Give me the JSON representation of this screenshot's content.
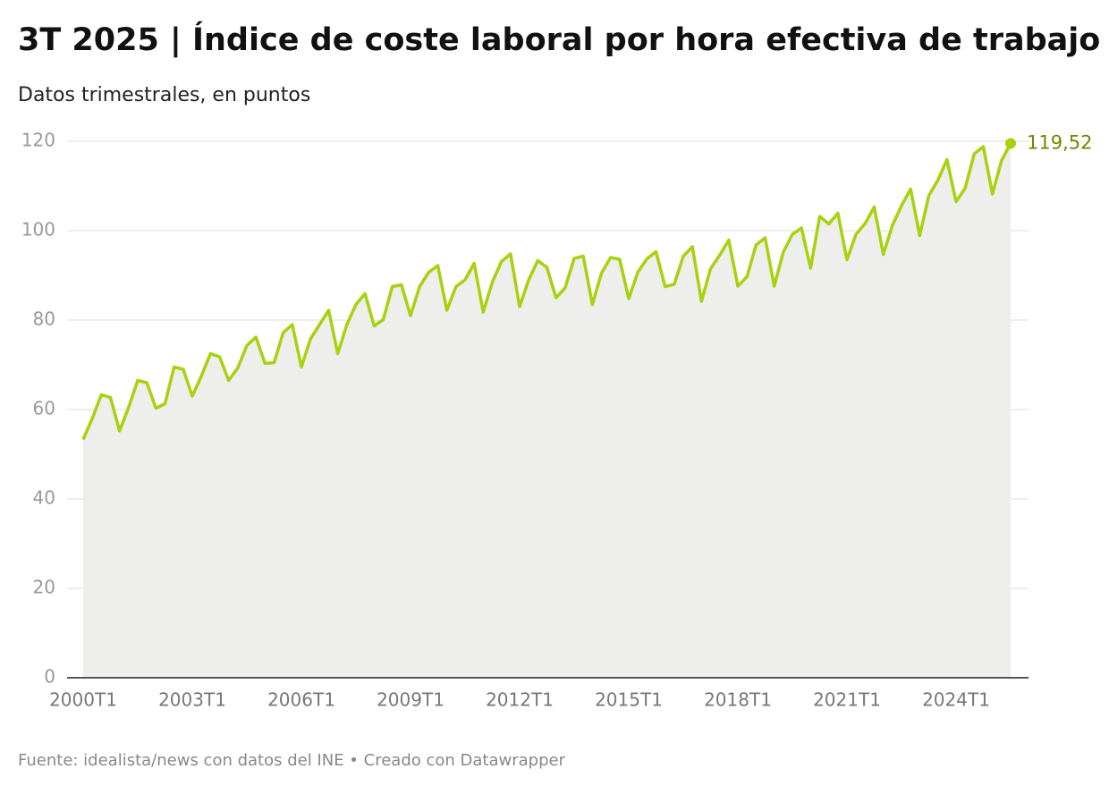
{
  "chart_data": {
    "type": "line",
    "title": "3T 2025 | Índice de coste laboral por hora efectiva de trabajo",
    "subtitle": "Datos trimestrales, en puntos",
    "source": "Fuente: idealista/news con datos del INE • Creado con Datawrapper",
    "categories": [
      "2000T1",
      null,
      null,
      null,
      null,
      null,
      null,
      null,
      null,
      null,
      null,
      null,
      "2003T1",
      null,
      null,
      null,
      null,
      null,
      null,
      null,
      null,
      null,
      null,
      null,
      "2006T1",
      null,
      null,
      null,
      null,
      null,
      null,
      null,
      null,
      null,
      null,
      null,
      "2009T1",
      null,
      null,
      null,
      null,
      null,
      null,
      null,
      null,
      null,
      null,
      null,
      "2012T1",
      null,
      null,
      null,
      null,
      null,
      null,
      null,
      null,
      null,
      null,
      null,
      "2015T1",
      null,
      null,
      null,
      null,
      null,
      null,
      null,
      null,
      null,
      null,
      null,
      "2018T1",
      null,
      null,
      null,
      null,
      null,
      null,
      null,
      null,
      null,
      null,
      null,
      "2021T1",
      null,
      null,
      null,
      null,
      null,
      null,
      null,
      null,
      null,
      null,
      null,
      "2024T1",
      null,
      null,
      null,
      null,
      null,
      null
    ],
    "values": [
      53.3,
      58,
      63.3,
      62.7,
      55.2,
      60.5,
      66.5,
      66,
      60.3,
      61.3,
      69.5,
      69,
      63,
      67.5,
      72.5,
      71.8,
      66.5,
      69.3,
      74.3,
      76.2,
      70.3,
      70.5,
      77.2,
      79,
      69.5,
      75.8,
      79,
      82.2,
      72.5,
      79,
      83.5,
      85.9,
      78.7,
      80.1,
      87.5,
      87.9,
      81,
      87.5,
      90.7,
      92.2,
      82.2,
      87.5,
      89,
      92.7,
      81.8,
      88.5,
      93.1,
      94.8,
      83,
      89,
      93.3,
      91.8,
      85,
      87.2,
      93.8,
      94.3,
      83.5,
      90.5,
      94,
      93.6,
      84.8,
      90.7,
      93.7,
      95.3,
      87.5,
      88,
      94.3,
      96.4,
      84.2,
      91.5,
      94.5,
      97.9,
      87.6,
      89.7,
      96.8,
      98.4,
      87.6,
      95.2,
      99.2,
      100.6,
      91.6,
      103.2,
      101.5,
      103.9,
      93.5,
      99.2,
      101.6,
      105.3,
      94.7,
      101.2,
      105.6,
      109.3,
      98.9,
      107.8,
      111.3,
      115.9,
      106.5,
      109.5,
      117.2,
      118.8,
      108.2,
      115.7,
      119.52
    ],
    "value_labels": [
      null,
      null,
      null,
      null,
      null,
      null,
      null,
      null,
      null,
      null,
      null,
      null,
      null,
      null,
      null,
      null,
      null,
      null,
      null,
      null,
      null,
      null,
      null,
      null,
      null,
      null,
      null,
      null,
      null,
      null,
      null,
      null,
      null,
      null,
      null,
      null,
      null,
      null,
      null,
      null,
      null,
      null,
      null,
      null,
      null,
      null,
      null,
      null,
      null,
      null,
      null,
      null,
      null,
      null,
      null,
      null,
      null,
      null,
      null,
      null,
      null,
      null,
      null,
      null,
      null,
      null,
      null,
      null,
      null,
      null,
      null,
      null,
      null,
      null,
      null,
      null,
      null,
      null,
      null,
      null,
      null,
      null,
      null,
      null,
      null,
      null,
      null,
      null,
      null,
      null,
      null,
      null,
      null,
      null,
      null,
      null,
      null,
      null,
      null,
      null,
      null,
      null,
      "119,52"
    ],
    "color": "#a6d20f",
    "area_color": "#eeeeed",
    "label_color": "#6b8a00",
    "ylim": [
      0,
      120
    ],
    "yticks": [
      0,
      20,
      40,
      60,
      80,
      100,
      120
    ],
    "grid": true
  }
}
